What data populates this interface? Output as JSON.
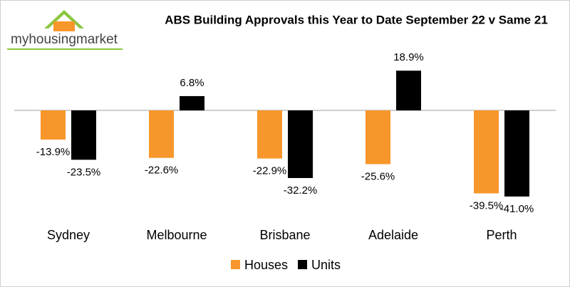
{
  "logo": "myhousingmarket",
  "chart_data": {
    "type": "bar",
    "title": "ABS Building Approvals this Year to Date September 22 v Same 21",
    "categories": [
      "Sydney",
      "Melbourne",
      "Brisbane",
      "Adelaide",
      "Perth"
    ],
    "series": [
      {
        "name": "Houses",
        "color": "#f7962a",
        "values": [
          -13.9,
          -22.6,
          -22.9,
          -25.6,
          -39.5
        ],
        "value_labels": [
          "-13.9%",
          "-22.6%",
          "-22.9%",
          "-25.6%",
          "-39.5%"
        ]
      },
      {
        "name": "Units",
        "color": "#000000",
        "values": [
          -23.5,
          6.8,
          -32.2,
          18.9,
          -41.0
        ],
        "value_labels": [
          "-23.5%",
          "6.8%",
          "-32.2%",
          "18.9%",
          "-41.0%"
        ]
      }
    ]
  }
}
